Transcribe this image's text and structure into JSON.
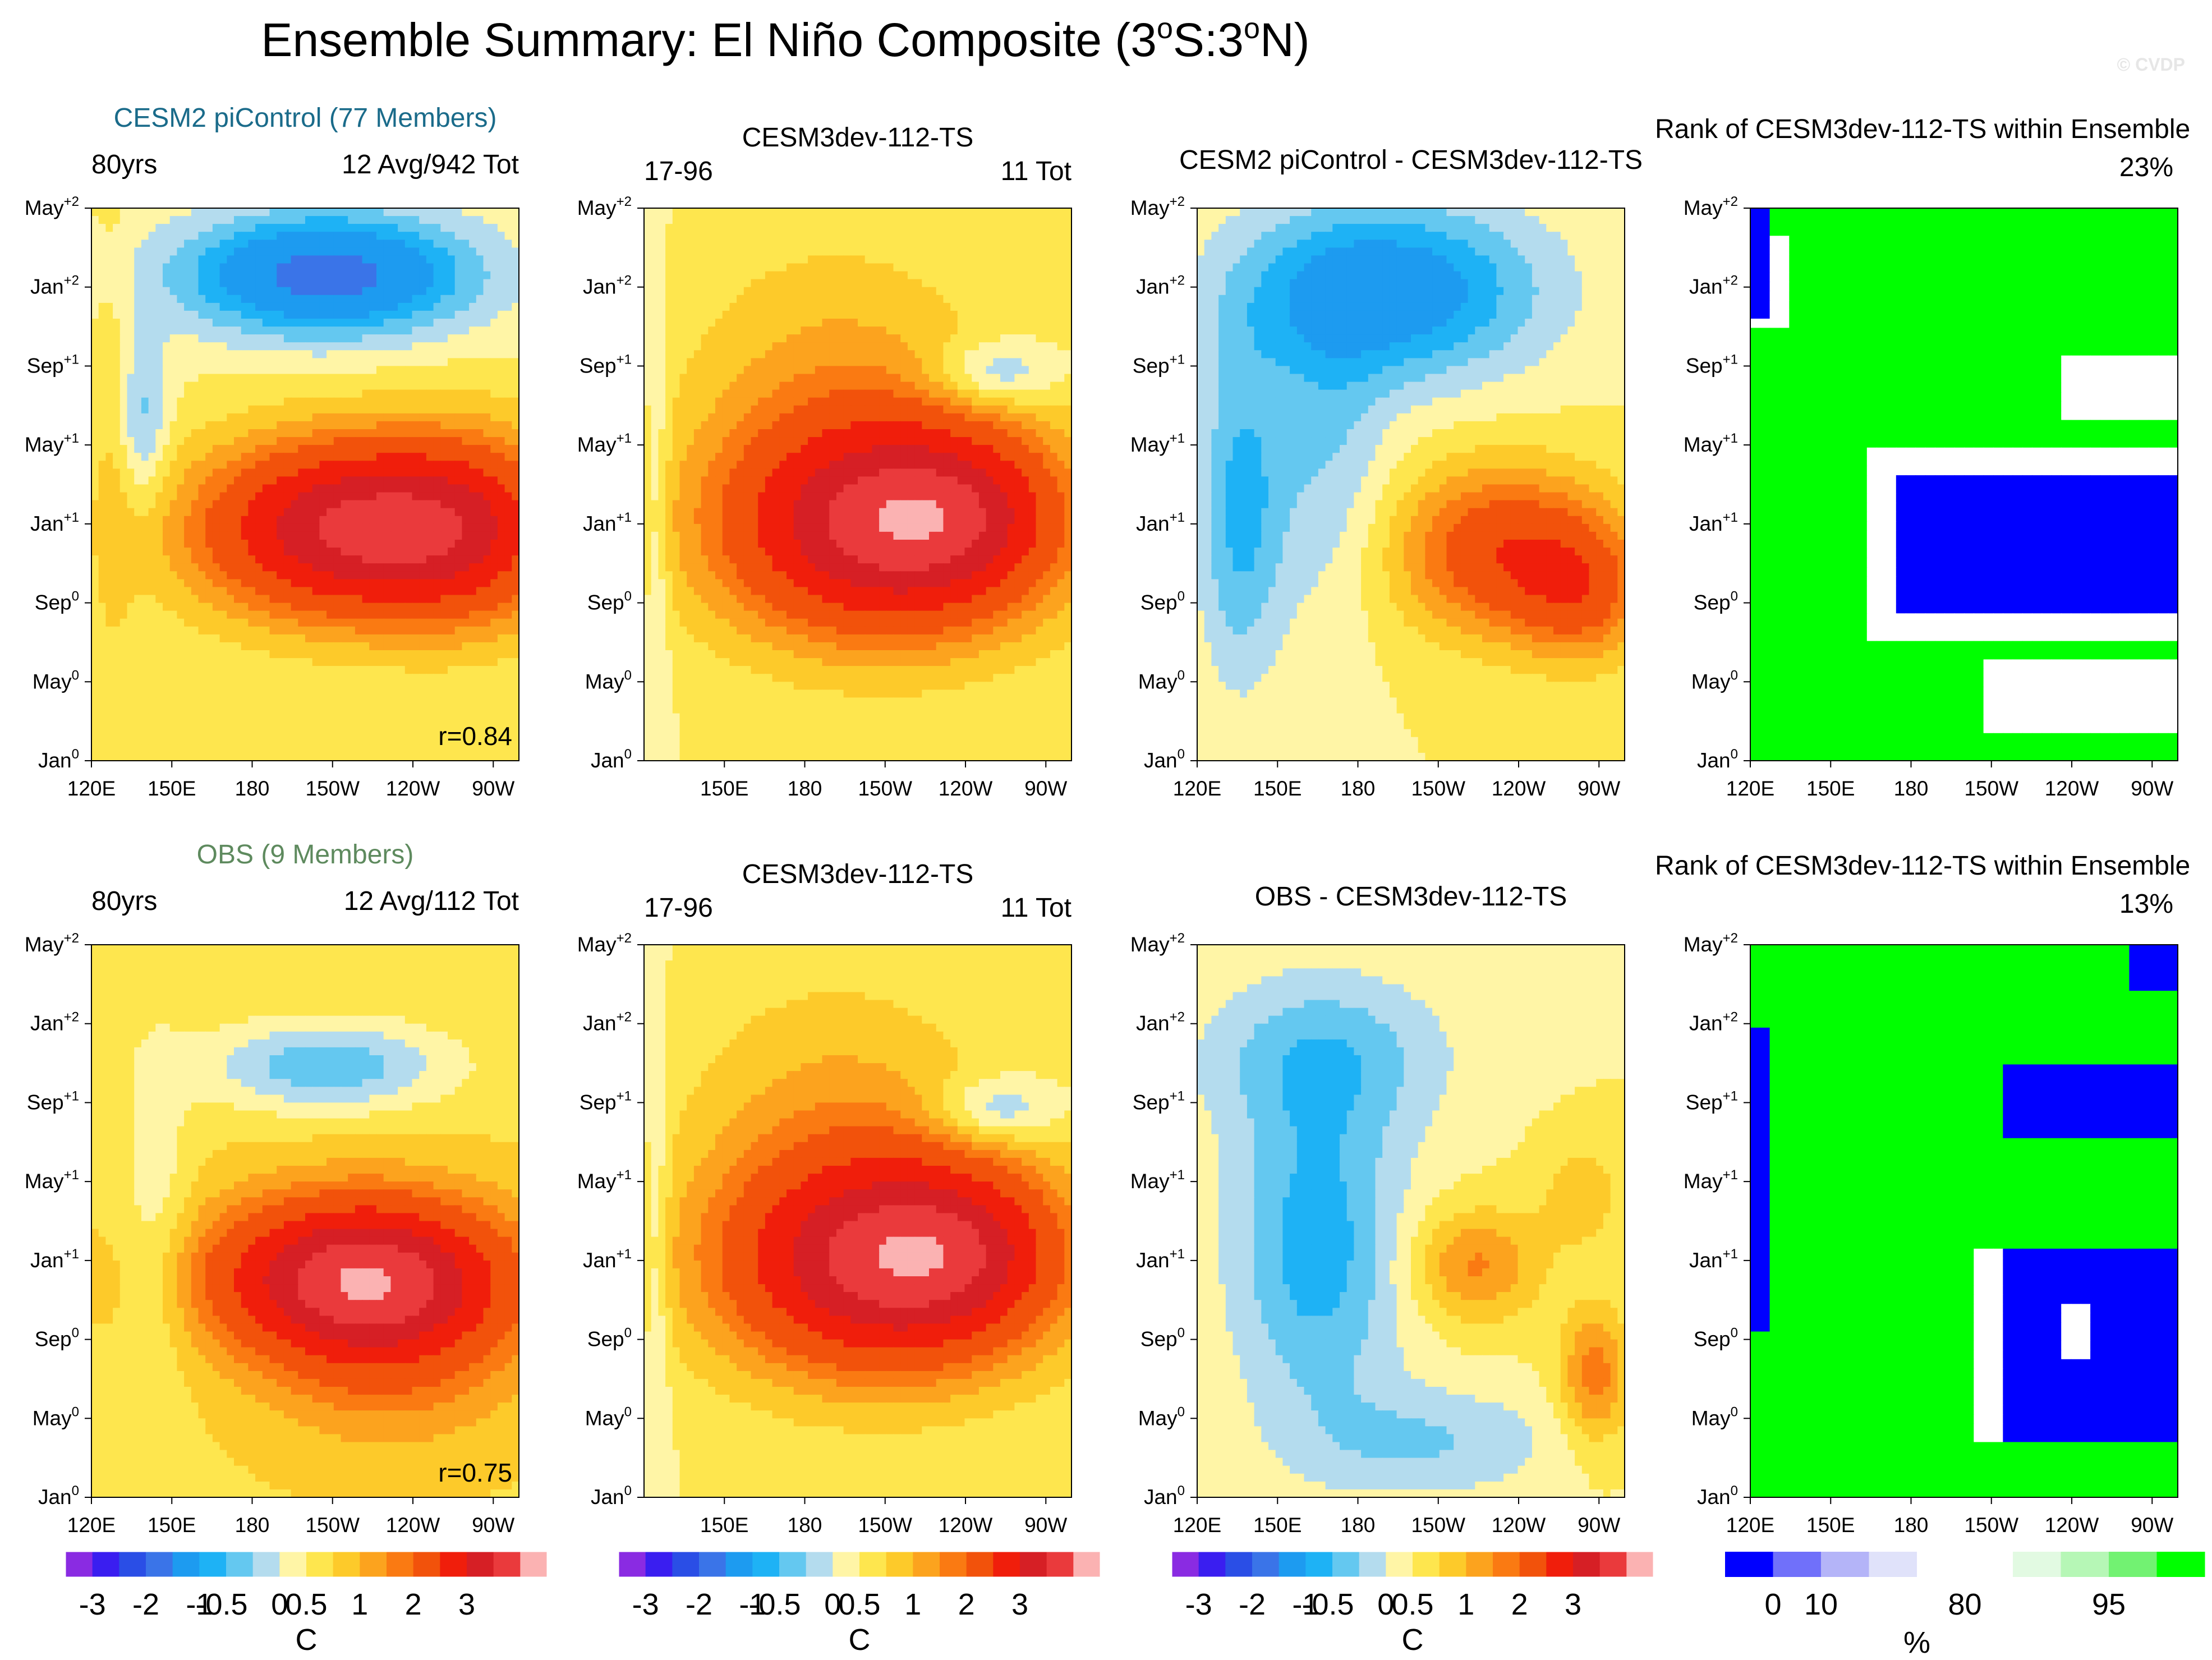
{
  "title": "Ensemble Summary: El Niño Composite (3°S:3°N)",
  "title_parts": {
    "pre": "Ensemble Summary: El Niño Composite (3",
    "deg": "o",
    "mid": "S:3",
    "end": "N)"
  },
  "watermark": "© CVDP",
  "y_ticks": [
    {
      "base": "Jan",
      "sup": "0"
    },
    {
      "base": "May",
      "sup": "0"
    },
    {
      "base": "Sep",
      "sup": "0"
    },
    {
      "base": "Jan",
      "sup": "+1"
    },
    {
      "base": "May",
      "sup": "+1"
    },
    {
      "base": "Sep",
      "sup": "+1"
    },
    {
      "base": "Jan",
      "sup": "+2"
    },
    {
      "base": "May",
      "sup": "+2"
    }
  ],
  "x_ticks_full": [
    "120E",
    "150E",
    "180",
    "150W",
    "120W",
    "90W"
  ],
  "x_ticks_short": [
    "150E",
    "180",
    "150W",
    "120W",
    "90W"
  ],
  "panels": [
    {
      "id": "r1c1",
      "top": "CESM2 piControl (77 Members)",
      "top_color": "#1a6b8a",
      "left": "80yrs",
      "right": "12 Avg/942 Tot",
      "corr": "r=0.84",
      "kind": "model"
    },
    {
      "id": "r1c2",
      "top": "CESM3dev-112-TS",
      "left": "17-96",
      "right": "11 Tot",
      "kind": "target"
    },
    {
      "id": "r1c3",
      "top": "CESM2 piControl - CESM3dev-112-TS",
      "kind": "diff1"
    },
    {
      "id": "r1c4",
      "top": "Rank of CESM3dev-112-TS within Ensemble",
      "right": "23%",
      "kind": "rank1"
    },
    {
      "id": "r2c1",
      "top": "OBS (9 Members)",
      "top_color": "#5e8a5e",
      "left": "80yrs",
      "right": "12 Avg/112 Tot",
      "corr": "r=0.75",
      "kind": "obs"
    },
    {
      "id": "r2c2",
      "top": "CESM3dev-112-TS",
      "left": "17-96",
      "right": "11 Tot",
      "kind": "target"
    },
    {
      "id": "r2c3",
      "top": "OBS - CESM3dev-112-TS",
      "kind": "diff2"
    },
    {
      "id": "r2c4",
      "top": "Rank of CESM3dev-112-TS within Ensemble",
      "right": "13%",
      "kind": "rank2"
    }
  ],
  "colorbars": {
    "temp": {
      "colors": [
        "#8a2be2",
        "#3a1ef0",
        "#2a4ee6",
        "#3a74e8",
        "#1d9bf0",
        "#1eb2f5",
        "#64c8f0",
        "#b4dcee",
        "#fff5a6",
        "#fee64e",
        "#fdca2a",
        "#fca31e",
        "#fa7a12",
        "#f2520b",
        "#f01e0b",
        "#d61f25",
        "#ea3a3c",
        "#fbb2b2"
      ],
      "labels": [
        "-3",
        "-2",
        "-1",
        "-0.5",
        "0",
        "0.5",
        "1",
        "2",
        "3"
      ],
      "unit": "C"
    },
    "rank": {
      "colors": [
        "#0000ff",
        "#7070fa",
        "#b4b4f8",
        "#e0e2fa",
        "#ffffff",
        "#ffffff",
        "#e2fae2",
        "#b6f7b6",
        "#72f272",
        "#00ff00"
      ],
      "labels": [
        "0",
        "10",
        "80",
        "95"
      ],
      "unit": "%"
    }
  },
  "chart_data": [
    {
      "type": "heatmap",
      "title": "CESM2 piControl (77 Members)",
      "xlabel": "",
      "ylabel": "",
      "x_ticks": [
        "120E",
        "150E",
        "180",
        "150W",
        "120W",
        "90W"
      ],
      "y_ticks": [
        "Jan0",
        "May0",
        "Sep0",
        "Jan+1",
        "May+1",
        "Sep+1",
        "Jan+2",
        "May+2"
      ],
      "pattern": "warm anomaly peaking ~2.5C near 160W-110W around Dec0-Jan+1; cold ~-1.5C in Jan+2-May+2 east of dateline",
      "colorbar_unit": "C",
      "r": 0.84
    },
    {
      "type": "heatmap",
      "title": "CESM3dev-112-TS",
      "x_ticks": [
        "150E",
        "180",
        "150W",
        "120W",
        "90W"
      ],
      "pattern": "warm anomaly ~2.5C from 170E to 100W around Nov0-Jan+1; weak cold pocket near 120W Sep+1",
      "colorbar_unit": "C"
    },
    {
      "type": "heatmap",
      "title": "CESM2 piControl - CESM3dev-112-TS",
      "pattern": "negative west/north, positive east around Jan+1",
      "colorbar_unit": "C"
    },
    {
      "type": "heatmap",
      "title": "Rank of CESM3dev-112-TS within Ensemble",
      "pattern": "mostly 95-100% green; 0-10% blue in east Pacific Sep0-Mar+1",
      "colorbar_unit": "%",
      "summary": "23%"
    },
    {
      "type": "heatmap",
      "title": "OBS (9 Members)",
      "pattern": "warm anomaly ~2.3C 170E-100W around Nov0-Jan+1; cold -1C near 150W Sep+1-Jan+2",
      "colorbar_unit": "C",
      "r": 0.75
    },
    {
      "type": "heatmap",
      "title": "CESM3dev-112-TS",
      "pattern": "same as row 1 target",
      "colorbar_unit": "C"
    },
    {
      "type": "heatmap",
      "title": "OBS - CESM3dev-112-TS",
      "pattern": "negative west of 150W, positive pockets east",
      "colorbar_unit": "C"
    },
    {
      "type": "heatmap",
      "title": "Rank of CESM3dev-112-TS within Ensemble",
      "pattern": "mostly 95-100% green; 0-10% blue east Pacific Sep0-Mar+1",
      "colorbar_unit": "%",
      "summary": "13%"
    }
  ]
}
